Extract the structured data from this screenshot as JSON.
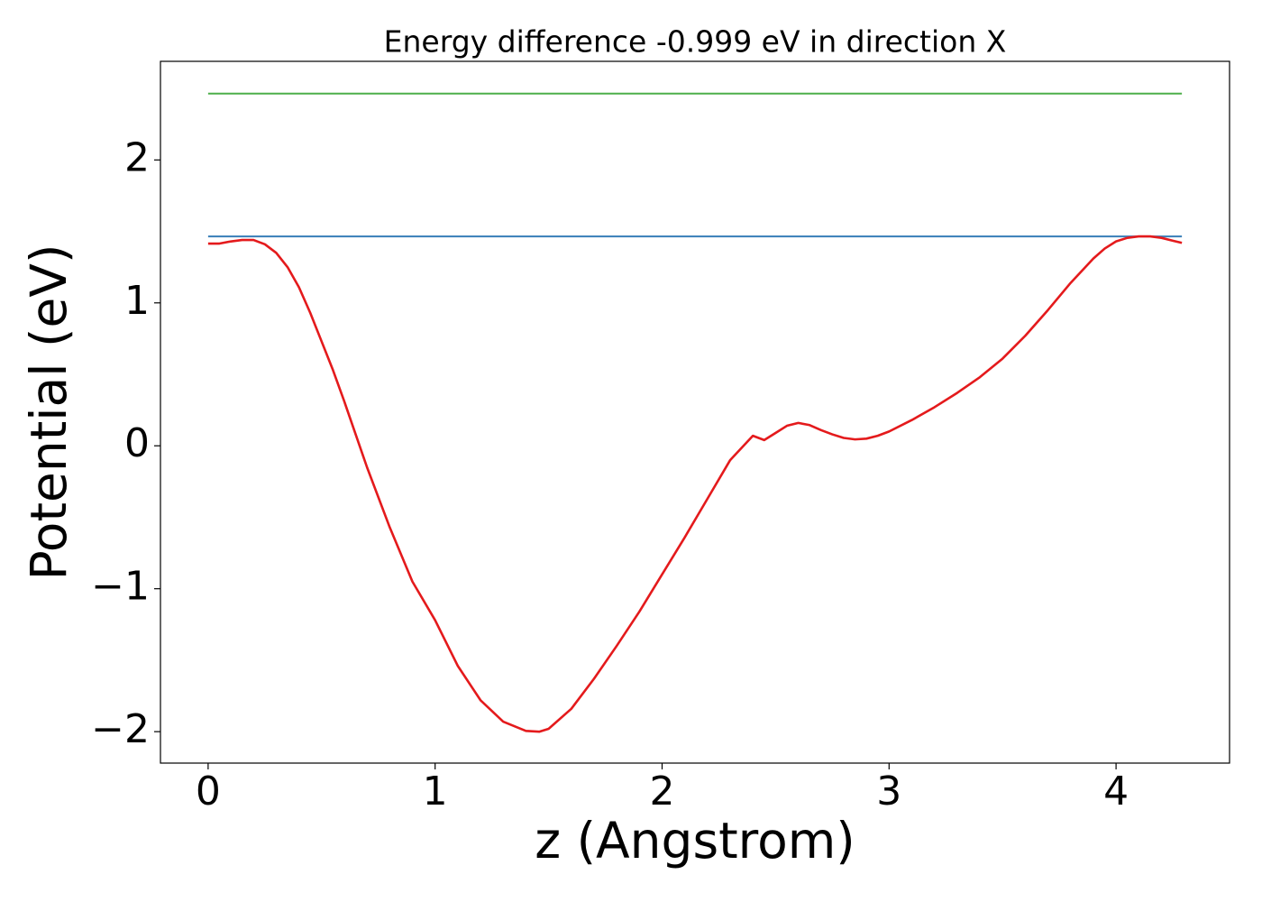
{
  "chart_data": {
    "type": "line",
    "title": "Energy difference -0.999 eV in direction X",
    "x_label": "z (Angstrom)",
    "y_label": "Potential (eV)",
    "xlim": [
      -0.21,
      4.5
    ],
    "ylim": [
      -2.22,
      2.69
    ],
    "xticks": [
      0,
      1,
      2,
      3,
      4
    ],
    "yticks": [
      {
        "value": -2,
        "label": "−2"
      },
      {
        "value": -1,
        "label": "−1"
      },
      0,
      1,
      2
    ],
    "grid": false,
    "series": [
      {
        "color": "#4daf4a",
        "x": [
          0,
          4.29
        ],
        "values": [
          2.464,
          2.464
        ]
      },
      {
        "color": "#377eb8",
        "x": [
          0,
          4.29
        ],
        "values": [
          1.465,
          1.465
        ]
      },
      {
        "color": "#e41a1c",
        "x": [
          0,
          0.05,
          0.1,
          0.15,
          0.2,
          0.25,
          0.3,
          0.35,
          0.4,
          0.45,
          0.5,
          0.55,
          0.6,
          0.65,
          0.7,
          0.8,
          0.9,
          1.0,
          1.1,
          1.2,
          1.3,
          1.4,
          1.46,
          1.5,
          1.6,
          1.7,
          1.8,
          1.9,
          2.0,
          2.1,
          2.2,
          2.3,
          2.4,
          2.45,
          2.5,
          2.55,
          2.6,
          2.65,
          2.7,
          2.75,
          2.8,
          2.85,
          2.9,
          2.95,
          3.0,
          3.1,
          3.2,
          3.3,
          3.4,
          3.5,
          3.6,
          3.7,
          3.8,
          3.9,
          3.95,
          4.0,
          4.05,
          4.1,
          4.15,
          4.2,
          4.25,
          4.29
        ],
        "values": [
          1.415,
          1.415,
          1.43,
          1.44,
          1.44,
          1.41,
          1.35,
          1.25,
          1.11,
          0.93,
          0.73,
          0.53,
          0.31,
          0.08,
          -0.15,
          -0.57,
          -0.95,
          -1.22,
          -1.54,
          -1.78,
          -1.93,
          -1.995,
          -2.0,
          -1.98,
          -1.84,
          -1.63,
          -1.4,
          -1.16,
          -0.9,
          -0.64,
          -0.37,
          -0.1,
          0.07,
          0.04,
          0.09,
          0.14,
          0.16,
          0.145,
          0.11,
          0.08,
          0.055,
          0.045,
          0.05,
          0.07,
          0.1,
          0.18,
          0.27,
          0.37,
          0.48,
          0.61,
          0.77,
          0.95,
          1.14,
          1.31,
          1.38,
          1.43,
          1.455,
          1.465,
          1.465,
          1.455,
          1.435,
          1.42
        ]
      }
    ]
  }
}
